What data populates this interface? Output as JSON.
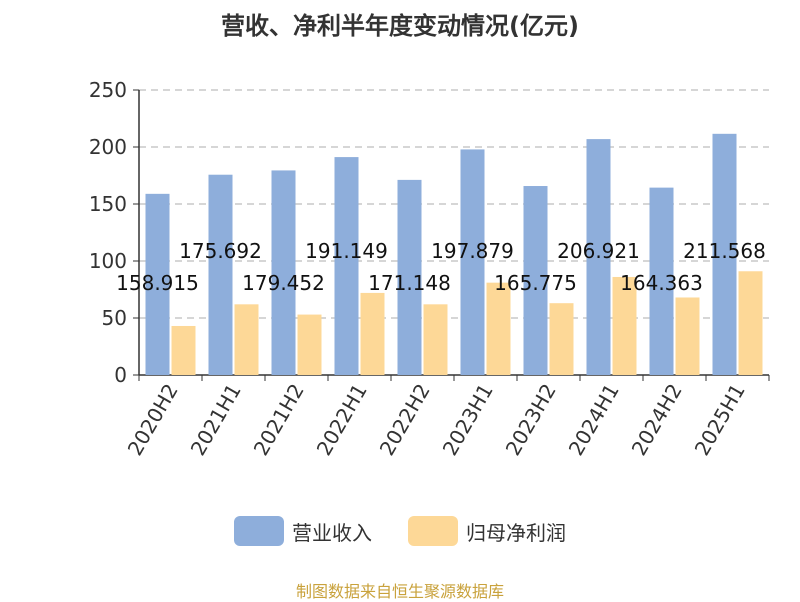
{
  "chart_data": {
    "type": "bar",
    "title": "营收、净利半年度变动情况(亿元)",
    "categories": [
      "2020H2",
      "2021H1",
      "2021H2",
      "2022H1",
      "2022H2",
      "2023H1",
      "2023H2",
      "2024H1",
      "2024H2",
      "2025H1"
    ],
    "series": [
      {
        "name": "营业收入",
        "color": "#8eaedb",
        "values": [
          158.915,
          175.692,
          179.452,
          191.149,
          171.148,
          197.879,
          165.775,
          206.921,
          164.363,
          211.568
        ],
        "labels": [
          "158.915",
          "175.692",
          "179.452",
          "191.149",
          "171.148",
          "197.879",
          "165.775",
          "206.921",
          "164.363",
          "211.568"
        ]
      },
      {
        "name": "归母净利润",
        "color": "#fdd897",
        "values": [
          43,
          62,
          53,
          72,
          62,
          81,
          63,
          86,
          68,
          91
        ]
      }
    ],
    "ylim": [
      0,
      250
    ],
    "yticks": [
      "0",
      "50",
      "100",
      "150",
      "200",
      "250"
    ],
    "grid": true,
    "legend_position": "bottom"
  },
  "footer": {
    "source": "制图数据来自恒生聚源数据库"
  }
}
